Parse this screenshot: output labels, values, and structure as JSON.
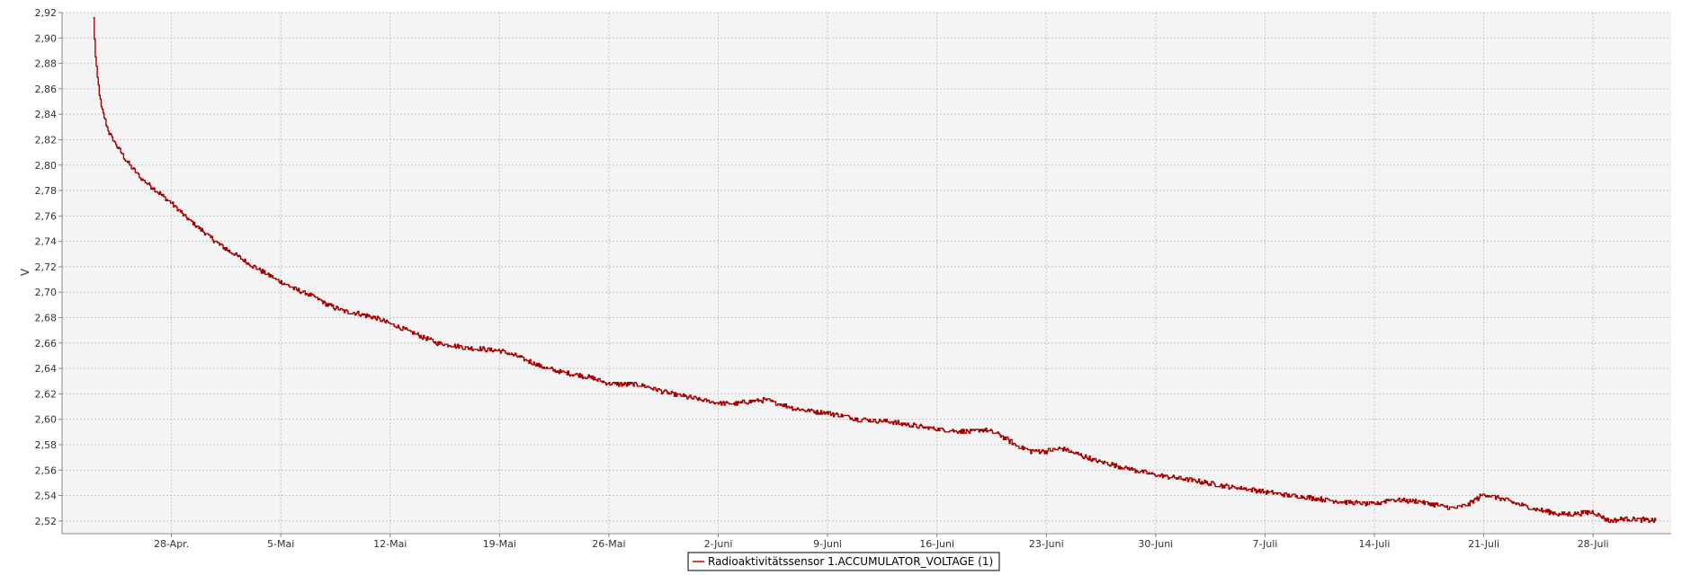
{
  "chart_data": {
    "type": "line",
    "title": "",
    "xlabel": "",
    "ylabel": "V",
    "ylim": [
      2.51,
      2.92
    ],
    "xlim": [
      "2023-04-21",
      "2023-08-02"
    ],
    "grid": true,
    "legend_placement": "bottom-center",
    "background": "#f4f4f4",
    "line_color": "#cc0000",
    "y_ticks": [
      "2,52",
      "2,54",
      "2,56",
      "2,58",
      "2,60",
      "2,62",
      "2,64",
      "2,66",
      "2,68",
      "2,70",
      "2,72",
      "2,74",
      "2,76",
      "2,78",
      "2,80",
      "2,82",
      "2,84",
      "2,86",
      "2,88",
      "2,90",
      "2,92"
    ],
    "x_ticks": [
      {
        "label": "28-Apr.",
        "date": "2023-04-28"
      },
      {
        "label": "5-Mai",
        "date": "2023-05-05"
      },
      {
        "label": "12-Mai",
        "date": "2023-05-12"
      },
      {
        "label": "19-Mai",
        "date": "2023-05-19"
      },
      {
        "label": "26-Mai",
        "date": "2023-05-26"
      },
      {
        "label": "2-Juni",
        "date": "2023-06-02"
      },
      {
        "label": "9-Juni",
        "date": "2023-06-09"
      },
      {
        "label": "16-Juni",
        "date": "2023-06-16"
      },
      {
        "label": "23-Juni",
        "date": "2023-06-23"
      },
      {
        "label": "30-Juni",
        "date": "2023-06-30"
      },
      {
        "label": "7-Juli",
        "date": "2023-07-07"
      },
      {
        "label": "14-Juli",
        "date": "2023-07-14"
      },
      {
        "label": "21-Juli",
        "date": "2023-07-21"
      },
      {
        "label": "28-Juli",
        "date": "2023-07-28"
      }
    ],
    "series": [
      {
        "name": "Radioaktivitätssensor 1.ACCUMULATOR_VOLTAGE (1)",
        "x": [
          "2023-04-23",
          "2023-04-23T03:00",
          "2023-04-23T06:00",
          "2023-04-23T12:00",
          "2023-04-24",
          "2023-04-25",
          "2023-04-26",
          "2023-04-27",
          "2023-04-28",
          "2023-04-29",
          "2023-04-30",
          "2023-05-01",
          "2023-05-02",
          "2023-05-03",
          "2023-05-04",
          "2023-05-05",
          "2023-05-06",
          "2023-05-07",
          "2023-05-08",
          "2023-05-09",
          "2023-05-10",
          "2023-05-11",
          "2023-05-12",
          "2023-05-13",
          "2023-05-14",
          "2023-05-15",
          "2023-05-16",
          "2023-05-17",
          "2023-05-18",
          "2023-05-19",
          "2023-05-20",
          "2023-05-21",
          "2023-05-22",
          "2023-05-23",
          "2023-05-24",
          "2023-05-25",
          "2023-05-26",
          "2023-05-28",
          "2023-05-30",
          "2023-06-01",
          "2023-06-02",
          "2023-06-03",
          "2023-06-04",
          "2023-06-05",
          "2023-06-06",
          "2023-06-07",
          "2023-06-09",
          "2023-06-11",
          "2023-06-13",
          "2023-06-15",
          "2023-06-17",
          "2023-06-18",
          "2023-06-19",
          "2023-06-20",
          "2023-06-21",
          "2023-06-22",
          "2023-06-23",
          "2023-06-24",
          "2023-06-26",
          "2023-06-28",
          "2023-06-30",
          "2023-07-02",
          "2023-07-04",
          "2023-07-06",
          "2023-07-08",
          "2023-07-10",
          "2023-07-12",
          "2023-07-14",
          "2023-07-15",
          "2023-07-17",
          "2023-07-19",
          "2023-07-20",
          "2023-07-21",
          "2023-07-22",
          "2023-07-24",
          "2023-07-26",
          "2023-07-28",
          "2023-07-29",
          "2023-07-30",
          "2023-07-31",
          "2023-08-01"
        ],
        "y": [
          2.915,
          2.885,
          2.868,
          2.845,
          2.825,
          2.805,
          2.79,
          2.78,
          2.77,
          2.758,
          2.748,
          2.738,
          2.73,
          2.722,
          2.715,
          2.708,
          2.702,
          2.697,
          2.69,
          2.685,
          2.683,
          2.68,
          2.675,
          2.67,
          2.665,
          2.66,
          2.658,
          2.656,
          2.655,
          2.654,
          2.65,
          2.645,
          2.64,
          2.637,
          2.635,
          2.632,
          2.628,
          2.627,
          2.62,
          2.615,
          2.613,
          2.612,
          2.614,
          2.615,
          2.612,
          2.608,
          2.605,
          2.6,
          2.598,
          2.594,
          2.591,
          2.59,
          2.592,
          2.588,
          2.58,
          2.575,
          2.575,
          2.577,
          2.568,
          2.562,
          2.556,
          2.553,
          2.548,
          2.545,
          2.541,
          2.538,
          2.535,
          2.533,
          2.537,
          2.535,
          2.53,
          2.533,
          2.541,
          2.538,
          2.53,
          2.525,
          2.527,
          2.52,
          2.522,
          2.521,
          2.52
        ]
      }
    ]
  }
}
